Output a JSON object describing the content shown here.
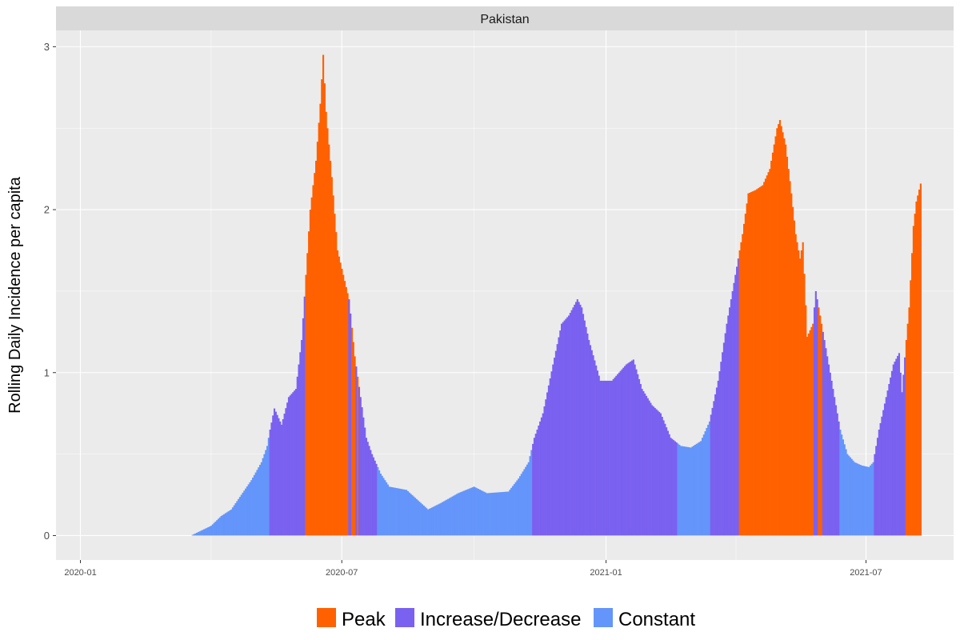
{
  "chart_data": {
    "type": "bar",
    "facet_title": "Pakistan",
    "xlabel": "",
    "ylabel": "Rolling Daily Incidence per capita",
    "x_range": [
      "2019-12-15",
      "2021-08-31"
    ],
    "ylim": [
      -0.15,
      3.1
    ],
    "y_ticks": [
      0,
      1,
      2,
      3
    ],
    "x_ticks": [
      "2020-01-01",
      "2020-07-01",
      "2021-01-01",
      "2021-07-01"
    ],
    "x_tick_labels": [
      "2020-01",
      "2020-07",
      "2021-01",
      "2021-07"
    ],
    "grid": true,
    "legend_position": "bottom",
    "colors": {
      "panel_bg": "#EBEBEB",
      "grid": "#FFFFFF",
      "strip_bg": "#D9D9D9",
      "Peak": "#FF6100",
      "Increase/Decrease": "#7B61F0",
      "Constant": "#6495FA"
    },
    "legend": [
      {
        "label": "Peak",
        "color": "#FF6100"
      },
      {
        "label": "Increase/Decrease",
        "color": "#7B61F0"
      },
      {
        "label": "Constant",
        "color": "#6495FA"
      }
    ],
    "value_keypoints": [
      [
        "2020-03-18",
        0.0
      ],
      [
        "2020-03-25",
        0.03
      ],
      [
        "2020-04-01",
        0.06
      ],
      [
        "2020-04-08",
        0.12
      ],
      [
        "2020-04-15",
        0.16
      ],
      [
        "2020-04-22",
        0.25
      ],
      [
        "2020-04-29",
        0.34
      ],
      [
        "2020-05-06",
        0.45
      ],
      [
        "2020-05-10",
        0.55
      ],
      [
        "2020-05-12",
        0.65
      ],
      [
        "2020-05-15",
        0.78
      ],
      [
        "2020-05-20",
        0.68
      ],
      [
        "2020-05-25",
        0.85
      ],
      [
        "2020-05-30",
        0.9
      ],
      [
        "2020-06-03",
        1.2
      ],
      [
        "2020-06-06",
        1.6
      ],
      [
        "2020-06-09",
        2.0
      ],
      [
        "2020-06-13",
        2.3
      ],
      [
        "2020-06-16",
        2.65
      ],
      [
        "2020-06-18",
        2.95
      ],
      [
        "2020-06-20",
        2.6
      ],
      [
        "2020-06-24",
        2.2
      ],
      [
        "2020-06-28",
        1.75
      ],
      [
        "2020-07-02",
        1.6
      ],
      [
        "2020-07-06",
        1.45
      ],
      [
        "2020-07-10",
        1.1
      ],
      [
        "2020-07-14",
        0.85
      ],
      [
        "2020-07-18",
        0.6
      ],
      [
        "2020-07-22",
        0.5
      ],
      [
        "2020-07-28",
        0.38
      ],
      [
        "2020-08-03",
        0.3
      ],
      [
        "2020-08-15",
        0.28
      ],
      [
        "2020-08-25",
        0.2
      ],
      [
        "2020-08-30",
        0.16
      ],
      [
        "2020-09-08",
        0.2
      ],
      [
        "2020-09-20",
        0.26
      ],
      [
        "2020-10-01",
        0.3
      ],
      [
        "2020-10-10",
        0.26
      ],
      [
        "2020-10-25",
        0.27
      ],
      [
        "2020-11-01",
        0.35
      ],
      [
        "2020-11-08",
        0.45
      ],
      [
        "2020-11-12",
        0.6
      ],
      [
        "2020-11-18",
        0.75
      ],
      [
        "2020-11-25",
        1.05
      ],
      [
        "2020-12-01",
        1.3
      ],
      [
        "2020-12-06",
        1.35
      ],
      [
        "2020-12-12",
        1.45
      ],
      [
        "2020-12-15",
        1.4
      ],
      [
        "2020-12-20",
        1.2
      ],
      [
        "2020-12-28",
        0.95
      ],
      [
        "2021-01-05",
        0.95
      ],
      [
        "2021-01-10",
        1.0
      ],
      [
        "2021-01-15",
        1.05
      ],
      [
        "2021-01-20",
        1.08
      ],
      [
        "2021-01-26",
        0.9
      ],
      [
        "2021-02-02",
        0.8
      ],
      [
        "2021-02-08",
        0.75
      ],
      [
        "2021-02-15",
        0.6
      ],
      [
        "2021-02-22",
        0.55
      ],
      [
        "2021-03-01",
        0.54
      ],
      [
        "2021-03-08",
        0.58
      ],
      [
        "2021-03-14",
        0.7
      ],
      [
        "2021-03-20",
        0.95
      ],
      [
        "2021-03-26",
        1.3
      ],
      [
        "2021-04-01",
        1.6
      ],
      [
        "2021-04-06",
        1.85
      ],
      [
        "2021-04-10",
        2.1
      ],
      [
        "2021-04-15",
        2.12
      ],
      [
        "2021-04-20",
        2.15
      ],
      [
        "2021-04-25",
        2.25
      ],
      [
        "2021-04-30",
        2.5
      ],
      [
        "2021-05-02",
        2.55
      ],
      [
        "2021-05-06",
        2.4
      ],
      [
        "2021-05-10",
        2.1
      ],
      [
        "2021-05-13",
        1.85
      ],
      [
        "2021-05-16",
        1.7
      ],
      [
        "2021-05-18",
        1.8
      ],
      [
        "2021-05-21",
        1.22
      ],
      [
        "2021-05-25",
        1.3
      ],
      [
        "2021-05-27",
        1.5
      ],
      [
        "2021-05-30",
        1.35
      ],
      [
        "2021-06-04",
        1.1
      ],
      [
        "2021-06-08",
        0.9
      ],
      [
        "2021-06-13",
        0.65
      ],
      [
        "2021-06-18",
        0.5
      ],
      [
        "2021-06-23",
        0.45
      ],
      [
        "2021-06-28",
        0.43
      ],
      [
        "2021-07-03",
        0.42
      ],
      [
        "2021-07-06",
        0.45
      ],
      [
        "2021-07-10",
        0.65
      ],
      [
        "2021-07-15",
        0.85
      ],
      [
        "2021-07-20",
        1.05
      ],
      [
        "2021-07-24",
        1.12
      ],
      [
        "2021-07-26",
        0.88
      ],
      [
        "2021-07-29",
        1.2
      ],
      [
        "2021-07-31",
        1.4
      ],
      [
        "2021-08-03",
        1.9
      ],
      [
        "2021-08-05",
        2.05
      ],
      [
        "2021-08-08",
        2.16
      ]
    ],
    "phase_segments": [
      {
        "start": "2020-03-18",
        "end": "2020-05-11",
        "phase": "Constant"
      },
      {
        "start": "2020-05-12",
        "end": "2020-06-05",
        "phase": "Increase/Decrease"
      },
      {
        "start": "2020-06-06",
        "end": "2020-07-05",
        "phase": "Peak"
      },
      {
        "start": "2020-07-06",
        "end": "2020-07-07",
        "phase": "Increase/Decrease"
      },
      {
        "start": "2020-07-08",
        "end": "2020-07-10",
        "phase": "Peak"
      },
      {
        "start": "2020-07-11",
        "end": "2020-07-11",
        "phase": "Increase/Decrease"
      },
      {
        "start": "2020-07-12",
        "end": "2020-07-12",
        "phase": "Peak"
      },
      {
        "start": "2020-07-13",
        "end": "2020-07-25",
        "phase": "Increase/Decrease"
      },
      {
        "start": "2020-07-26",
        "end": "2020-11-10",
        "phase": "Constant"
      },
      {
        "start": "2020-11-11",
        "end": "2021-02-19",
        "phase": "Increase/Decrease"
      },
      {
        "start": "2021-02-20",
        "end": "2021-03-14",
        "phase": "Constant"
      },
      {
        "start": "2021-03-15",
        "end": "2021-04-03",
        "phase": "Increase/Decrease"
      },
      {
        "start": "2021-04-04",
        "end": "2021-05-25",
        "phase": "Peak"
      },
      {
        "start": "2021-05-26",
        "end": "2021-05-28",
        "phase": "Increase/Decrease"
      },
      {
        "start": "2021-05-29",
        "end": "2021-05-31",
        "phase": "Peak"
      },
      {
        "start": "2021-06-01",
        "end": "2021-06-12",
        "phase": "Increase/Decrease"
      },
      {
        "start": "2021-06-13",
        "end": "2021-07-06",
        "phase": "Constant"
      },
      {
        "start": "2021-07-07",
        "end": "2021-07-28",
        "phase": "Increase/Decrease"
      },
      {
        "start": "2021-07-29",
        "end": "2021-08-08",
        "phase": "Peak"
      }
    ]
  }
}
